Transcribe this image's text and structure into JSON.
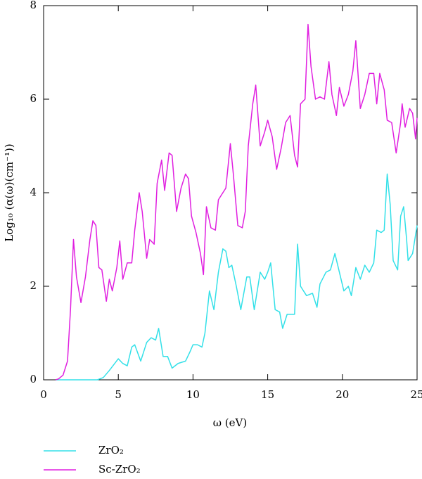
{
  "chart_data": {
    "type": "line",
    "xlabel": "ω (eV)",
    "ylabel": "Log₁₀ (α(ω)(cm⁻¹))",
    "xlim": [
      0,
      25
    ],
    "xticks": [
      0,
      5,
      10,
      15,
      20,
      25
    ],
    "ylim": [
      0,
      8
    ],
    "yticks": [
      0,
      2,
      4,
      6,
      8
    ],
    "legend": "bottom-left",
    "series": [
      {
        "name": "ZrO₂",
        "color": "#33e0e8",
        "x": [
          0.8,
          3.6,
          4.0,
          4.4,
          5.0,
          5.3,
          5.6,
          5.9,
          6.1,
          6.5,
          6.9,
          7.2,
          7.5,
          7.7,
          8.0,
          8.3,
          8.6,
          9.0,
          9.5,
          9.8,
          10.0,
          10.3,
          10.6,
          10.8,
          11.1,
          11.4,
          11.7,
          12.0,
          12.2,
          12.4,
          12.6,
          12.9,
          13.2,
          13.6,
          13.8,
          14.1,
          14.5,
          14.8,
          15.0,
          15.2,
          15.5,
          15.8,
          16.0,
          16.3,
          16.6,
          16.8,
          17.0,
          17.2,
          17.6,
          18.0,
          18.3,
          18.5,
          18.9,
          19.2,
          19.5,
          19.8,
          20.1,
          20.4,
          20.6,
          20.9,
          21.2,
          21.5,
          21.8,
          22.1,
          22.3,
          22.6,
          22.8,
          23.0,
          23.2,
          23.4,
          23.7,
          23.9,
          24.1,
          24.3,
          24.4,
          24.7,
          25.0
        ],
        "values": [
          0,
          0,
          0.05,
          0.2,
          0.45,
          0.35,
          0.3,
          0.7,
          0.75,
          0.4,
          0.8,
          0.9,
          0.85,
          1.1,
          0.5,
          0.5,
          0.25,
          0.35,
          0.4,
          0.6,
          0.75,
          0.75,
          0.7,
          1.0,
          1.9,
          1.5,
          2.3,
          2.8,
          2.75,
          2.4,
          2.45,
          2.0,
          1.5,
          2.2,
          2.2,
          1.5,
          2.3,
          2.15,
          2.3,
          2.5,
          1.5,
          1.45,
          1.1,
          1.4,
          1.4,
          1.4,
          2.9,
          2.0,
          1.8,
          1.85,
          1.55,
          2.05,
          2.3,
          2.35,
          2.7,
          2.3,
          1.9,
          2.0,
          1.8,
          2.4,
          2.15,
          2.45,
          2.3,
          2.5,
          3.2,
          3.15,
          3.2,
          4.4,
          3.75,
          2.55,
          2.35,
          3.5,
          3.7,
          3.0,
          2.55,
          2.7,
          3.3
        ]
      },
      {
        "name": "Sc-ZrO₂",
        "color": "#e020e0",
        "x": [
          0.8,
          1.0,
          1.3,
          1.6,
          1.8,
          2.0,
          2.2,
          2.5,
          2.8,
          3.1,
          3.3,
          3.5,
          3.7,
          3.9,
          4.2,
          4.4,
          4.6,
          4.9,
          5.1,
          5.3,
          5.6,
          5.9,
          6.1,
          6.4,
          6.6,
          6.9,
          7.1,
          7.4,
          7.6,
          7.9,
          8.1,
          8.4,
          8.6,
          8.9,
          9.2,
          9.5,
          9.7,
          9.9,
          10.2,
          10.5,
          10.7,
          10.9,
          11.2,
          11.5,
          11.7,
          12.0,
          12.2,
          12.5,
          12.7,
          13.0,
          13.3,
          13.5,
          13.7,
          14.0,
          14.2,
          14.5,
          14.8,
          15.0,
          15.3,
          15.6,
          15.9,
          16.2,
          16.5,
          16.8,
          17.0,
          17.2,
          17.5,
          17.7,
          17.9,
          18.2,
          18.5,
          18.8,
          19.1,
          19.3,
          19.6,
          19.8,
          20.1,
          20.4,
          20.7,
          20.9,
          21.2,
          21.5,
          21.8,
          22.1,
          22.3,
          22.5,
          22.8,
          23.0,
          23.3,
          23.6,
          23.9,
          24.0,
          24.2,
          24.5,
          24.7,
          24.9,
          25.0
        ],
        "values": [
          0,
          0.02,
          0.1,
          0.4,
          1.5,
          3.0,
          2.2,
          1.65,
          2.2,
          3.0,
          3.4,
          3.3,
          2.4,
          2.35,
          1.68,
          2.15,
          1.9,
          2.4,
          2.97,
          2.15,
          2.5,
          2.5,
          3.2,
          4.0,
          3.6,
          2.6,
          3.0,
          2.9,
          4.2,
          4.7,
          4.05,
          4.85,
          4.8,
          3.6,
          4.1,
          4.4,
          4.3,
          3.5,
          3.15,
          2.7,
          2.25,
          3.7,
          3.25,
          3.2,
          3.85,
          4.0,
          4.1,
          5.05,
          4.4,
          3.3,
          3.25,
          3.6,
          5.0,
          5.9,
          6.3,
          5.0,
          5.3,
          5.55,
          5.2,
          4.5,
          4.95,
          5.5,
          5.65,
          4.8,
          4.55,
          5.9,
          6.0,
          7.6,
          6.7,
          6.0,
          6.05,
          6.0,
          6.8,
          6.1,
          5.65,
          6.25,
          5.85,
          6.1,
          6.6,
          7.25,
          5.8,
          6.1,
          6.55,
          6.55,
          5.9,
          6.55,
          6.2,
          5.55,
          5.5,
          4.85,
          5.5,
          5.9,
          5.4,
          5.8,
          5.7,
          5.15,
          5.6
        ]
      }
    ]
  }
}
